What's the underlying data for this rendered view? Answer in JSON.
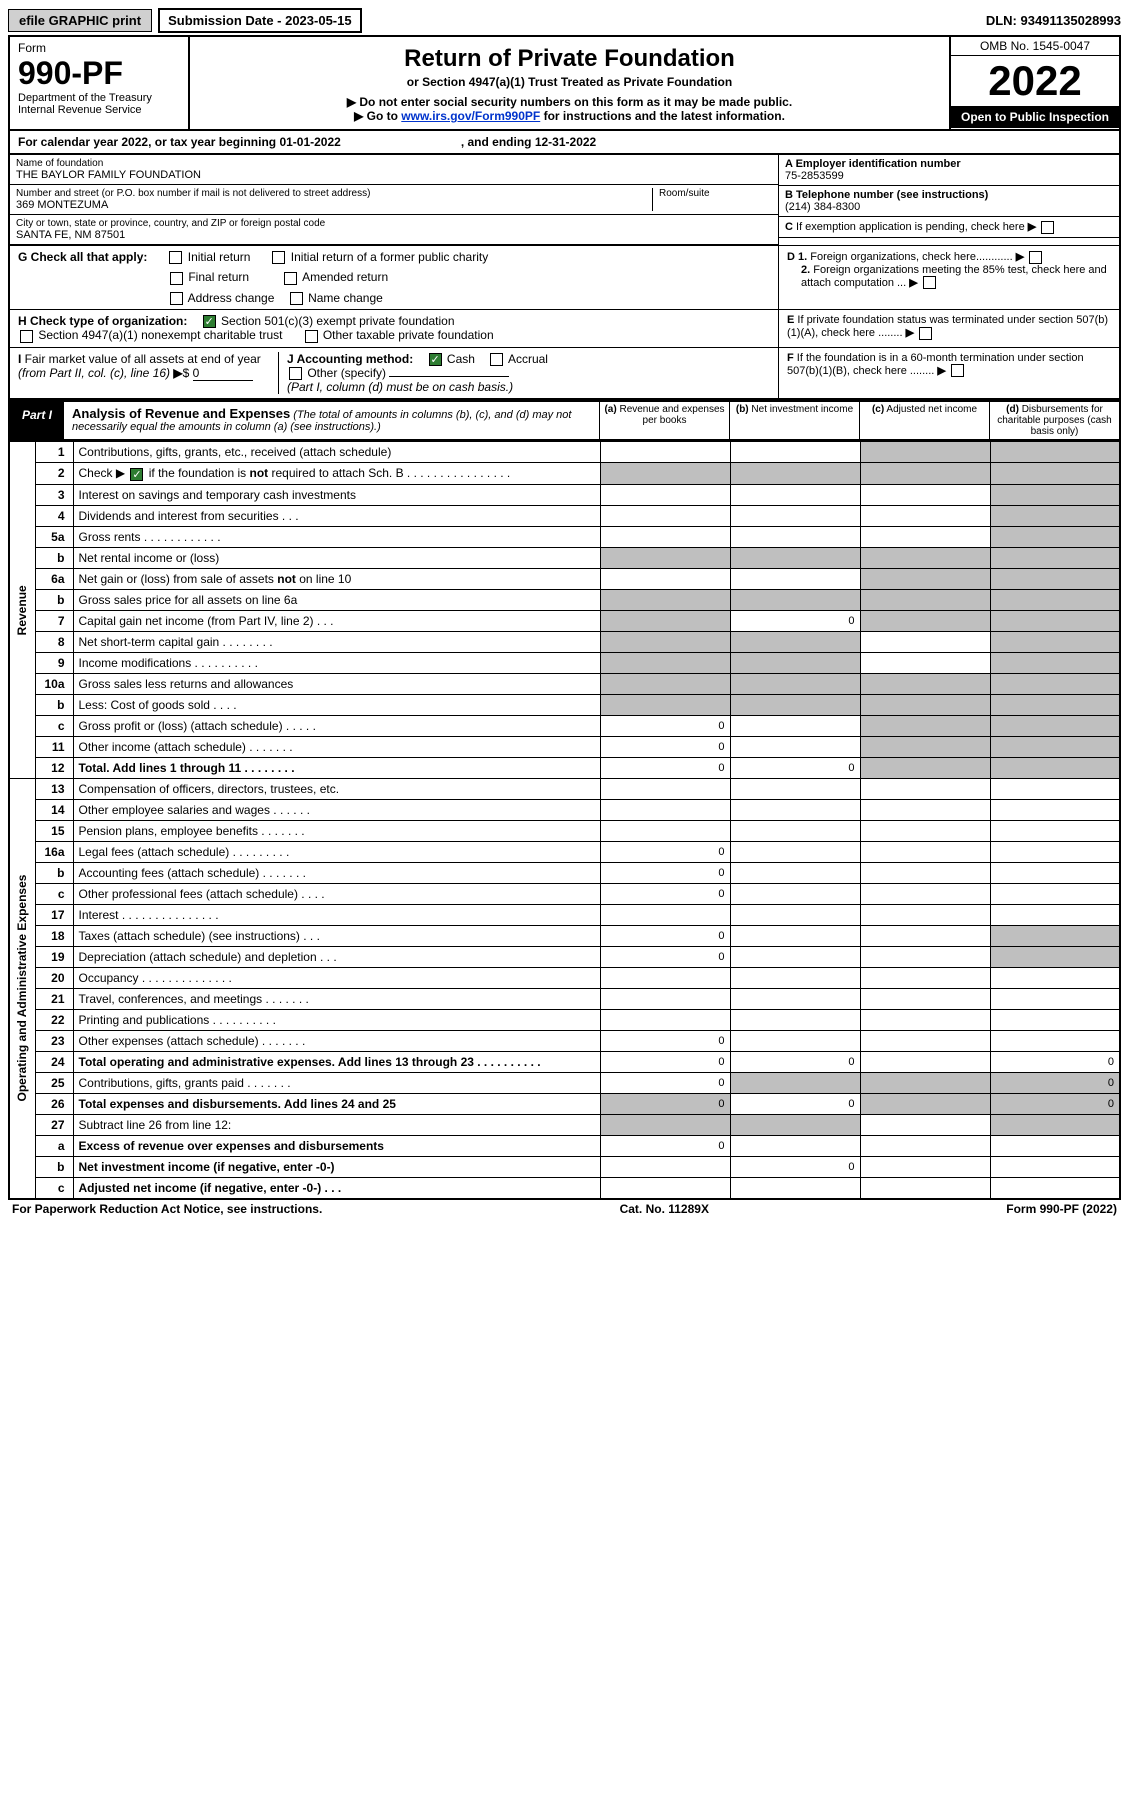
{
  "header": {
    "efile_btn": "efile GRAPHIC print",
    "submission": "Submission Date - 2023-05-15",
    "dln": "DLN: 93491135028993"
  },
  "form_box": {
    "form_label": "Form",
    "form_number": "990-PF",
    "dept": "Department of the Treasury",
    "irs": "Internal Revenue Service",
    "title": "Return of Private Foundation",
    "subtitle": "or Section 4947(a)(1) Trust Treated as Private Foundation",
    "note1": "▶ Do not enter social security numbers on this form as it may be made public.",
    "note2_pre": "▶ Go to ",
    "note2_link": "www.irs.gov/Form990PF",
    "note2_post": " for instructions and the latest information.",
    "omb": "OMB No. 1545-0047",
    "year": "2022",
    "open": "Open to Public Inspection"
  },
  "calendar": {
    "text": "For calendar year 2022, or tax year beginning 01-01-2022",
    "ending": ", and ending 12-31-2022"
  },
  "entity": {
    "name_label": "Name of foundation",
    "name": "THE BAYLOR FAMILY FOUNDATION",
    "addr_label": "Number and street (or P.O. box number if mail is not delivered to street address)",
    "addr": "369 MONTEZUMA",
    "room_label": "Room/suite",
    "city_label": "City or town, state or province, country, and ZIP or foreign postal code",
    "city": "SANTA FE, NM  87501",
    "ein_label": "A Employer identification number",
    "ein": "75-2853599",
    "phone_label": "B Telephone number (see instructions)",
    "phone": "(214) 384-8300",
    "c_label": "C If exemption application is pending, check here",
    "d1_label": "D 1. Foreign organizations, check here............",
    "d2_label": "2. Foreign organizations meeting the 85% test, check here and attach computation ...",
    "e_label": "E  If private foundation status was terminated under section 507(b)(1)(A), check here ........",
    "f_label": "F  If the foundation is in a 60-month termination under section 507(b)(1)(B), check here ........"
  },
  "g_section": {
    "g_label": "G Check all that apply:",
    "initial": "Initial return",
    "initial_former": "Initial return of a former public charity",
    "final": "Final return",
    "amended": "Amended return",
    "addr_change": "Address change",
    "name_change": "Name change",
    "h_label": "H Check type of organization:",
    "h1": "Section 501(c)(3) exempt private foundation",
    "h2": "Section 4947(a)(1) nonexempt charitable trust",
    "h3": "Other taxable private foundation",
    "i_label": "I Fair market value of all assets at end of year (from Part II, col. (c), line 16)",
    "i_val": "0",
    "j_label": "J Accounting method:",
    "cash": "Cash",
    "accrual": "Accrual",
    "other": "Other (specify)",
    "note": "(Part I, column (d) must be on cash basis.)"
  },
  "part1": {
    "label": "Part I",
    "title": "Analysis of Revenue and Expenses",
    "subtitle": "(The total of amounts in columns (b), (c), and (d) may not necessarily equal the amounts in column (a) (see instructions).)",
    "col_a": "(a)  Revenue and expenses per books",
    "col_b": "(b)  Net investment income",
    "col_c": "(c)  Adjusted net income",
    "col_d": "(d)  Disbursements for charitable purposes (cash basis only)"
  },
  "vert": {
    "revenue": "Revenue",
    "expenses": "Operating and Administrative Expenses"
  },
  "rows": [
    {
      "n": "1",
      "d": "Contributions, gifts, grants, etc., received (attach schedule)"
    },
    {
      "n": "2",
      "d": "Check ▶ ☑ if the foundation is not required to attach Sch. B   .  .  .  .  .  .  .  .  .  .  .  .  .  .  .  ."
    },
    {
      "n": "3",
      "d": "Interest on savings and temporary cash investments"
    },
    {
      "n": "4",
      "d": "Dividends and interest from securities     .    .    ."
    },
    {
      "n": "5a",
      "d": "Gross rents    .    .    .    .    .    .    .    .    .    .    .    ."
    },
    {
      "n": "b",
      "d": "Net rental income or (loss)"
    },
    {
      "n": "6a",
      "d": "Net gain or (loss) from sale of assets not on line 10"
    },
    {
      "n": "b",
      "d": "Gross sales price for all assets on line 6a"
    },
    {
      "n": "7",
      "d": "Capital gain net income (from Part IV, line 2)    .    .    .",
      "b": "0"
    },
    {
      "n": "8",
      "d": "Net short-term capital gain  .    .    .    .    .    .    .    ."
    },
    {
      "n": "9",
      "d": "Income modifications .    .    .    .    .    .    .    .    .    ."
    },
    {
      "n": "10a",
      "d": "Gross sales less returns and allowances"
    },
    {
      "n": "b",
      "d": "Less: Cost of goods sold    .    .    .    ."
    },
    {
      "n": "c",
      "d": "Gross profit or (loss) (attach schedule)    .    .    .    .    .",
      "a": "0"
    },
    {
      "n": "11",
      "d": "Other income (attach schedule)    .    .    .    .    .    .    .",
      "a": "0"
    },
    {
      "n": "12",
      "d": "Total. Add lines 1 through 11   .    .    .    .    .    .    .    .",
      "bold": true,
      "a": "0",
      "b": "0"
    },
    {
      "n": "13",
      "d": "Compensation of officers, directors, trustees, etc."
    },
    {
      "n": "14",
      "d": "Other employee salaries and wages   .    .    .    .    .    ."
    },
    {
      "n": "15",
      "d": "Pension plans, employee benefits .    .    .    .    .    .    ."
    },
    {
      "n": "16a",
      "d": "Legal fees (attach schedule) .    .    .    .    .    .    .    .    .",
      "a": "0"
    },
    {
      "n": "b",
      "d": "Accounting fees (attach schedule) .    .    .    .    .    .    .",
      "a": "0"
    },
    {
      "n": "c",
      "d": "Other professional fees (attach schedule)    .    .    .    .",
      "a": "0"
    },
    {
      "n": "17",
      "d": "Interest .    .    .    .    .    .    .    .    .    .    .    .    .    .    ."
    },
    {
      "n": "18",
      "d": "Taxes (attach schedule) (see instructions)    .    .    .",
      "a": "0"
    },
    {
      "n": "19",
      "d": "Depreciation (attach schedule) and depletion    .    .    .",
      "a": "0"
    },
    {
      "n": "20",
      "d": "Occupancy .    .    .    .    .    .    .    .    .    .    .    .    .    ."
    },
    {
      "n": "21",
      "d": "Travel, conferences, and meetings .    .    .    .    .    .    ."
    },
    {
      "n": "22",
      "d": "Printing and publications .    .    .    .    .    .    .    .    .    ."
    },
    {
      "n": "23",
      "d": "Other expenses (attach schedule) .    .    .    .    .    .    .",
      "a": "0"
    },
    {
      "n": "24",
      "d": "Total operating and administrative expenses. Add lines 13 through 23   .    .    .    .    .    .    .    .    .    .",
      "bold": true,
      "a": "0",
      "b": "0",
      "dd": "0"
    },
    {
      "n": "25",
      "d": "Contributions, gifts, grants paid    .    .    .    .    .    .    .",
      "a": "0",
      "dd": "0"
    },
    {
      "n": "26",
      "d": "Total expenses and disbursements. Add lines 24 and 25",
      "bold": true,
      "a": "0",
      "b": "0",
      "dd": "0"
    },
    {
      "n": "27",
      "d": "Subtract line 26 from line 12:"
    },
    {
      "n": "a",
      "d": "Excess of revenue over expenses and disbursements",
      "bold": true,
      "a": "0"
    },
    {
      "n": "b",
      "d": "Net investment income (if negative, enter -0-)",
      "bold": true,
      "b": "0"
    },
    {
      "n": "c",
      "d": "Adjusted net income (if negative, enter -0-)   .    .    .",
      "bold": true
    }
  ],
  "footer": {
    "left": "For Paperwork Reduction Act Notice, see instructions.",
    "mid": "Cat. No. 11289X",
    "right": "Form 990-PF (2022)"
  },
  "colors": {
    "black": "#000000",
    "shade": "#bfbfbf",
    "link": "#0033cc",
    "check": "#2e7d32"
  }
}
